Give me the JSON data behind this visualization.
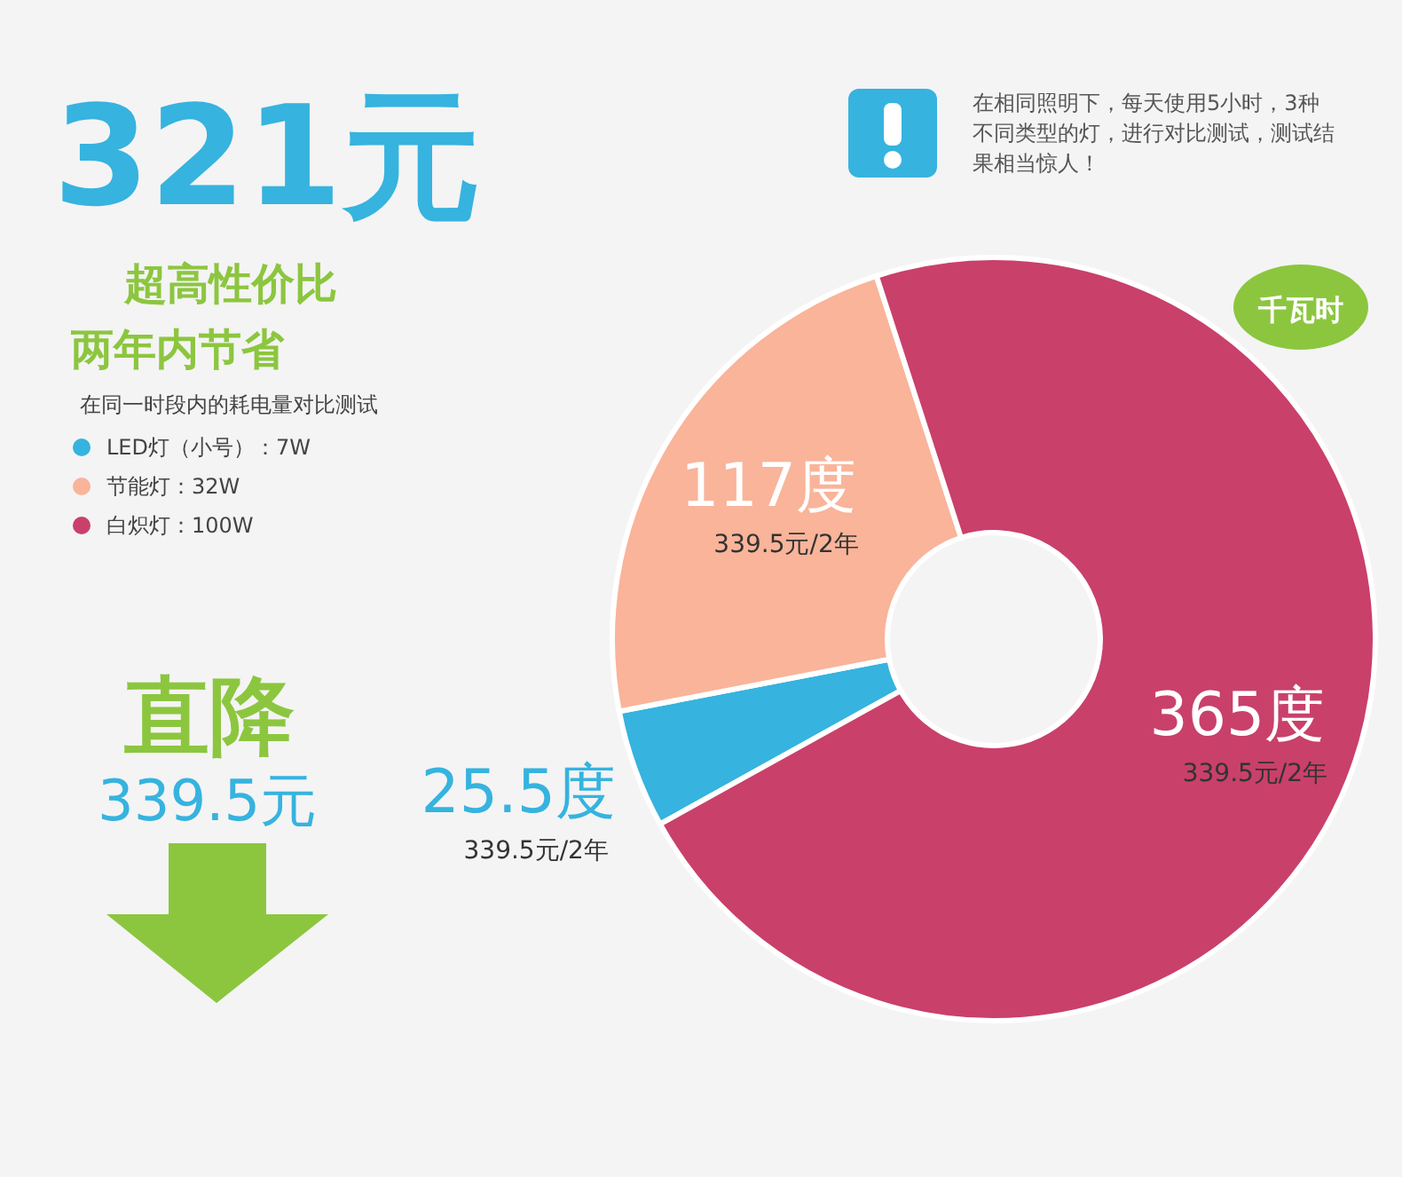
{
  "chart_data": {
    "type": "donut",
    "title": "321元",
    "legend_title": "在同一时段内的耗电量对比测试",
    "legend": "left",
    "categories": [
      "LED灯（小号）：7W",
      "节能灯：32W",
      "白炽灯：100W"
    ],
    "values": [
      25.5,
      117,
      365
    ],
    "colors": [
      "#36b3df",
      "#f9b49a",
      "#c9406b"
    ],
    "value_labels": [
      "25.5度",
      "117度",
      "365度"
    ],
    "annotations": [
      "339.5元/2年",
      "339.5元/2年",
      "339.5元/2年",
      "超高性价比",
      "两年内节省",
      "直降",
      "339.5元",
      "在相同照明下，每天使用5小时，3种不同类型的灯，进行对比测试，测试结果相当惊人！",
      "千瓦时"
    ]
  }
}
